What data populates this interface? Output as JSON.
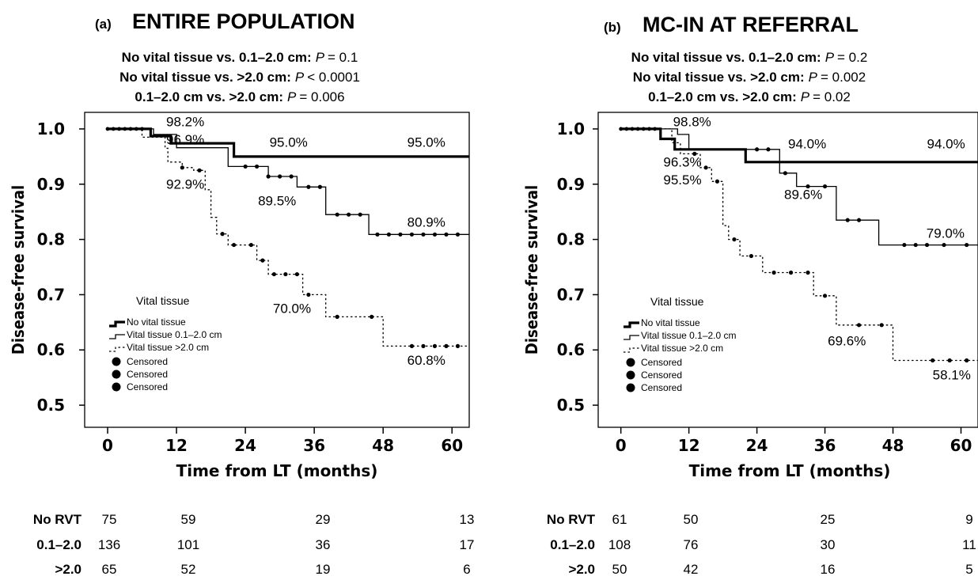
{
  "chart_data": [
    {
      "type": "line",
      "panel_label": "(a)",
      "title": "ENTIRE POPULATION",
      "comparisons": [
        {
          "label": "No vital tissue vs. 0.1–2.0 cm:",
          "p_sym": "P",
          "p_rest": "= 0.1"
        },
        {
          "label": "No vital tissue vs. >2.0 cm:",
          "p_sym": "P",
          "p_rest": "< 0.0001"
        },
        {
          "label": "0.1–2.0 cm vs. >2.0 cm:",
          "p_sym": "P",
          "p_rest": "= 0.006"
        }
      ],
      "xlabel": "Time from LT (months)",
      "ylabel": "Disease-free survival",
      "xlim": [
        -4,
        63
      ],
      "ylim": [
        0.46,
        1.03
      ],
      "xticks": [
        0,
        12,
        24,
        36,
        48,
        60
      ],
      "yticks": [
        0.5,
        0.6,
        0.7,
        0.8,
        0.9,
        1.0
      ],
      "legend": {
        "title": "Vital tissue",
        "placement": "lower-left",
        "items": [
          "No vital tissue",
          "Vital tissue 0.1–2.0 cm",
          "Vital tissue >2.0 cm"
        ],
        "censored": [
          "Censored",
          "Censored",
          "Censored"
        ]
      },
      "series": [
        {
          "style": "thick",
          "steps": [
            [
              0,
              1.0
            ],
            [
              7.5,
              0.987
            ],
            [
              11,
              0.974
            ],
            [
              22,
              0.95
            ],
            [
              63,
              0.95
            ]
          ],
          "censor_x": []
        },
        {
          "style": "thin",
          "steps": [
            [
              0,
              1.0
            ],
            [
              8,
              0.99
            ],
            [
              12,
              0.966
            ],
            [
              21,
              0.932
            ],
            [
              28,
              0.914
            ],
            [
              33,
              0.895
            ],
            [
              38,
              0.845
            ],
            [
              45.5,
              0.809
            ],
            [
              63,
              0.809
            ]
          ],
          "censor_x": [
            24,
            26,
            28,
            30,
            32,
            35,
            37,
            40,
            42,
            44,
            47,
            49,
            51,
            53,
            55,
            57,
            59,
            61
          ]
        },
        {
          "style": "dotted",
          "steps": [
            [
              0,
              1.0
            ],
            [
              6,
              0.985
            ],
            [
              10,
              0.965
            ],
            [
              10.5,
              0.94
            ],
            [
              13,
              0.93
            ],
            [
              15,
              0.925
            ],
            [
              17,
              0.89
            ],
            [
              18,
              0.84
            ],
            [
              19,
              0.81
            ],
            [
              21,
              0.79
            ],
            [
              26,
              0.762
            ],
            [
              28,
              0.737
            ],
            [
              34,
              0.7
            ],
            [
              38,
              0.66
            ],
            [
              48,
              0.607
            ],
            [
              63,
              0.607
            ]
          ],
          "censor_x": [
            13,
            16,
            20,
            22,
            25,
            27,
            29,
            31,
            33,
            35,
            40,
            46,
            53,
            55,
            57,
            59,
            61
          ]
        }
      ],
      "annotations": [
        {
          "text": "98.2%",
          "x": 10.2,
          "y": 1.005
        },
        {
          "text": "96.9%",
          "x": 10.2,
          "y": 0.973
        },
        {
          "text": "92.9%",
          "x": 10.2,
          "y": 0.892
        },
        {
          "text": "95.0%",
          "x": 28.2,
          "y": 0.968
        },
        {
          "text": "95.0%",
          "x": 52.2,
          "y": 0.968
        },
        {
          "text": "89.5%",
          "x": 26.2,
          "y": 0.862
        },
        {
          "text": "80.9%",
          "x": 52.2,
          "y": 0.823
        },
        {
          "text": "70.0%",
          "x": 28.8,
          "y": 0.667
        },
        {
          "text": "60.8%",
          "x": 52.2,
          "y": 0.573
        }
      ],
      "risk_table": [
        {
          "label": "No RVT",
          "values": [
            "75",
            "59",
            "29",
            "13"
          ]
        },
        {
          "label": "0.1–2.0",
          "values": [
            "136",
            "101",
            "36",
            "17"
          ]
        },
        {
          "label": ">2.0",
          "values": [
            "65",
            "52",
            "19",
            "6"
          ]
        }
      ]
    },
    {
      "type": "line",
      "panel_label": "(b)",
      "title": "MC-IN AT REFERRAL",
      "comparisons": [
        {
          "label": "No vital tissue vs. 0.1–2.0 cm:",
          "p_sym": "P",
          "p_rest": "= 0.2"
        },
        {
          "label": "No vital tissue vs. >2.0 cm:",
          "p_sym": "P",
          "p_rest": "= 0.002"
        },
        {
          "label": "0.1–2.0 cm vs. >2.0 cm:",
          "p_sym": "P",
          "p_rest": "= 0.02"
        }
      ],
      "xlabel": "Time from LT (months)",
      "ylabel": "Disease-free survival",
      "xlim": [
        -4,
        63
      ],
      "ylim": [
        0.46,
        1.03
      ],
      "xticks": [
        0,
        12,
        24,
        36,
        48,
        60
      ],
      "yticks": [
        0.5,
        0.6,
        0.7,
        0.8,
        0.9,
        1.0
      ],
      "legend": {
        "title": "Vital tissue",
        "placement": "lower-left",
        "items": [
          "No vital tissue",
          "Vital tissue 0.1–2.0 cm",
          "Vital tissue >2.0 cm"
        ],
        "censored": [
          "Censored",
          "Censored",
          "Censored"
        ]
      },
      "series": [
        {
          "style": "thick",
          "steps": [
            [
              0,
              1.0
            ],
            [
              7,
              0.982
            ],
            [
              9.5,
              0.963
            ],
            [
              22,
              0.94
            ],
            [
              63,
              0.94
            ]
          ],
          "censor_x": []
        },
        {
          "style": "thin",
          "steps": [
            [
              0,
              1.0
            ],
            [
              10,
              0.99
            ],
            [
              12,
              0.963
            ],
            [
              28,
              0.92
            ],
            [
              31,
              0.896
            ],
            [
              38,
              0.835
            ],
            [
              45.5,
              0.79
            ],
            [
              63,
              0.79
            ]
          ],
          "censor_x": [
            24,
            26,
            29,
            33,
            36,
            40,
            42,
            50,
            52,
            54,
            57,
            61
          ]
        },
        {
          "style": "dotted",
          "steps": [
            [
              0,
              1.0
            ],
            [
              9,
              0.975
            ],
            [
              10.5,
              0.955
            ],
            [
              14,
              0.93
            ],
            [
              16,
              0.905
            ],
            [
              18,
              0.825
            ],
            [
              19,
              0.8
            ],
            [
              21,
              0.77
            ],
            [
              25,
              0.74
            ],
            [
              34,
              0.698
            ],
            [
              38,
              0.645
            ],
            [
              48,
              0.581
            ],
            [
              63,
              0.581
            ]
          ],
          "censor_x": [
            13,
            15,
            17,
            20,
            23,
            27,
            30,
            33,
            36,
            42,
            46,
            55,
            58,
            61
          ]
        }
      ],
      "annotations": [
        {
          "text": "98.8%",
          "x": 9.2,
          "y": 1.005
        },
        {
          "text": "96.3%",
          "x": 7.5,
          "y": 0.932
        },
        {
          "text": "95.5%",
          "x": 7.5,
          "y": 0.9
        },
        {
          "text": "94.0%",
          "x": 29.5,
          "y": 0.965
        },
        {
          "text": "94.0%",
          "x": 54.0,
          "y": 0.965
        },
        {
          "text": "89.6%",
          "x": 28.8,
          "y": 0.873
        },
        {
          "text": "79.0%",
          "x": 53.9,
          "y": 0.803
        },
        {
          "text": "69.6%",
          "x": 36.5,
          "y": 0.608
        },
        {
          "text": "58.1%",
          "x": 55.0,
          "y": 0.547
        }
      ],
      "risk_table": [
        {
          "label": "No RVT",
          "values": [
            "61",
            "50",
            "25",
            "9"
          ]
        },
        {
          "label": "0.1–2.0",
          "values": [
            "108",
            "76",
            "30",
            "11"
          ]
        },
        {
          "label": ">2.0",
          "values": [
            "50",
            "42",
            "16",
            "5"
          ]
        }
      ]
    }
  ]
}
